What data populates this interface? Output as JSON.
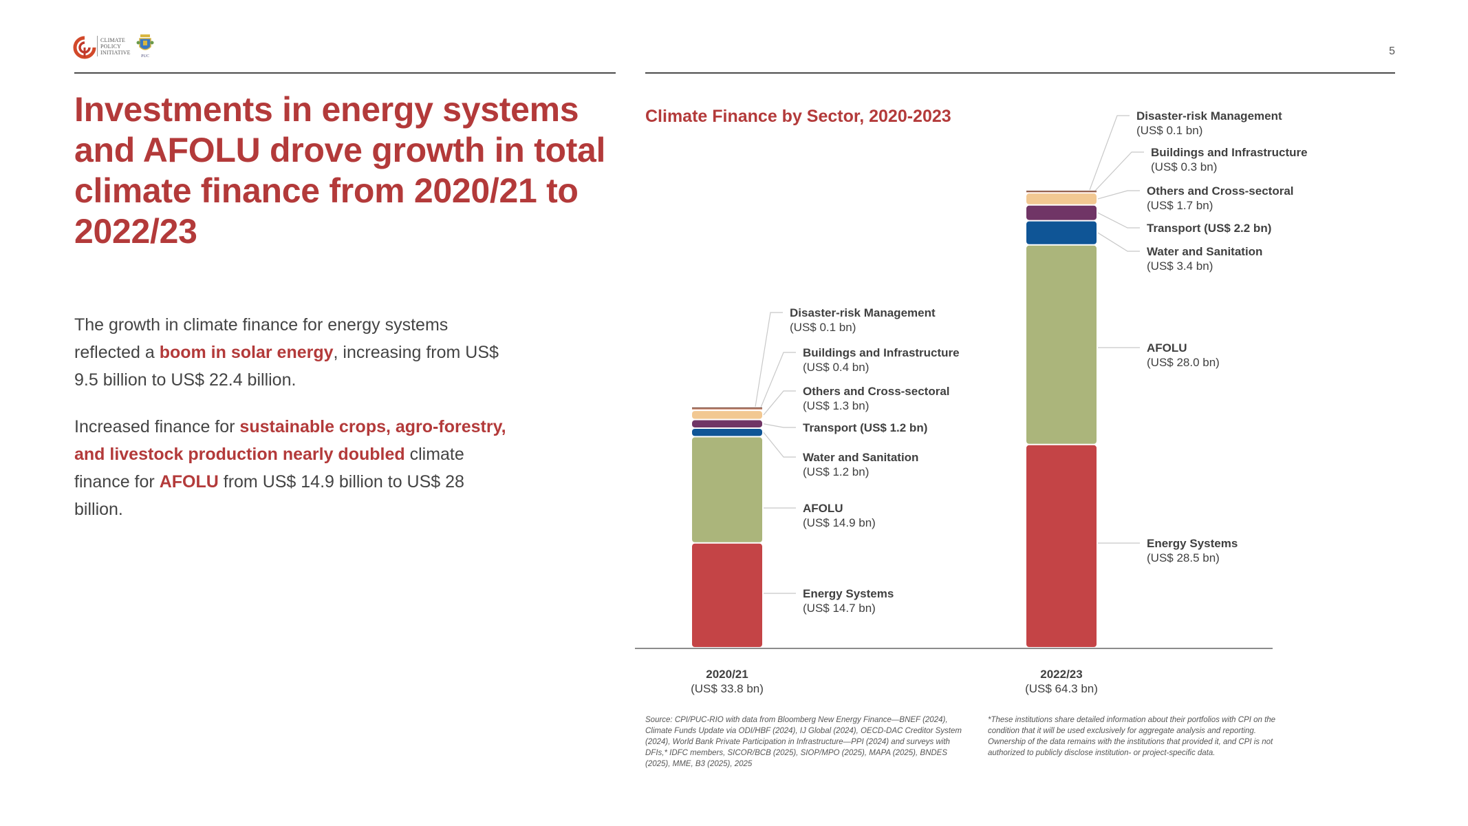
{
  "header": {
    "logo_org_lines": [
      "CLIMATE",
      "POLICY",
      "INITIATIVE"
    ],
    "partner_logo": "PUC",
    "page_number": "5"
  },
  "headline": "Investments in energy systems and AFOLU drove growth in total climate finance from 2020/21 to 2022/23",
  "paragraphs": [
    {
      "parts": [
        {
          "text": "The growth in climate finance for energy systems reflected a ",
          "highlight": false
        },
        {
          "text": "boom in solar energy",
          "highlight": true
        },
        {
          "text": ", increasing from US$ 9.5 billion to US$ 22.4 billion.",
          "highlight": false
        }
      ]
    },
    {
      "parts": [
        {
          "text": "Increased finance for ",
          "highlight": false
        },
        {
          "text": "sustainable crops, agro-forestry, and livestock production nearly doubled",
          "highlight": true
        },
        {
          "text": " climate finance for ",
          "highlight": false
        },
        {
          "text": "AFOLU",
          "highlight": true
        },
        {
          "text": " from US$ 14.9 billion to US$ 28 billion.",
          "highlight": false
        }
      ]
    }
  ],
  "colors": {
    "accent": "#b33a3a",
    "text": "#404040"
  },
  "chart_data": {
    "type": "bar",
    "stacked": true,
    "title": "Climate Finance by Sector, 2020-2023",
    "xlabel": "",
    "ylabel": "",
    "unit": "US$ bn",
    "grid": false,
    "legend": "direct-labels-right",
    "categories": [
      "2020/21",
      "2022/23"
    ],
    "category_totals": [
      "(US$ 33.8 bn)",
      "(US$ 64.3 bn)"
    ],
    "totals": [
      33.8,
      64.3
    ],
    "series": [
      {
        "name": "Energy Systems",
        "color": "#c44446",
        "values": [
          14.7,
          28.5
        ],
        "labels": [
          "(US$ 14.7 bn)",
          "(US$ 28.5 bn)"
        ]
      },
      {
        "name": "AFOLU",
        "color": "#abb57b",
        "values": [
          14.9,
          28.0
        ],
        "labels": [
          "(US$ 14.9 bn)",
          "(US$ 28.0 bn)"
        ]
      },
      {
        "name": "Water and Sanitation",
        "color": "#0f5596",
        "values": [
          1.2,
          3.4
        ],
        "labels": [
          "(US$ 1.2 bn)",
          "(US$ 3.4 bn)"
        ]
      },
      {
        "name": "Transport",
        "color": "#703566",
        "values": [
          1.2,
          2.2
        ],
        "labels": [
          "(US$ 1.2 bn)",
          "(US$ 2.2 bn)"
        ]
      },
      {
        "name": "Others and Cross-sectoral",
        "color": "#f2c892",
        "values": [
          1.3,
          1.7
        ],
        "labels": [
          "(US$ 1.3 bn)",
          "(US$ 1.7 bn)"
        ]
      },
      {
        "name": "Buildings and Infrastructure",
        "color": "#d9a08a",
        "values": [
          0.4,
          0.3
        ],
        "labels": [
          "(US$ 0.4 bn)",
          "(US$ 0.3 bn)"
        ]
      },
      {
        "name": "Disaster-risk Management",
        "color": "#7a4a3a",
        "values": [
          0.1,
          0.1
        ],
        "labels": [
          "(US$ 0.1 bn)",
          "(US$ 0.1 bn)"
        ]
      }
    ],
    "ylim": [
      0,
      64.3
    ]
  },
  "footnotes": {
    "source": "Source: CPI/PUC-RIO with data from Bloomberg New Energy Finance—BNEF (2024), Climate Funds Update via ODI/HBF (2024), IJ Global (2024), OECD-DAC Creditor System (2024), World Bank Private Participation in Infrastructure—PPI (2024) and surveys with DFIs,* IDFC members, SICOR/BCB (2025), SIOP/MPO (2025), MAPA (2025), BNDES (2025), MME, B3 (2025), 2025",
    "disclaimer": "*These institutions share detailed information about their portfolios with CPI on the condition that it will be used exclusively for aggregate analysis and reporting. Ownership of the data remains with the institutions that provided it, and CPI is not authorized to publicly disclose institution- or project-specific data."
  }
}
